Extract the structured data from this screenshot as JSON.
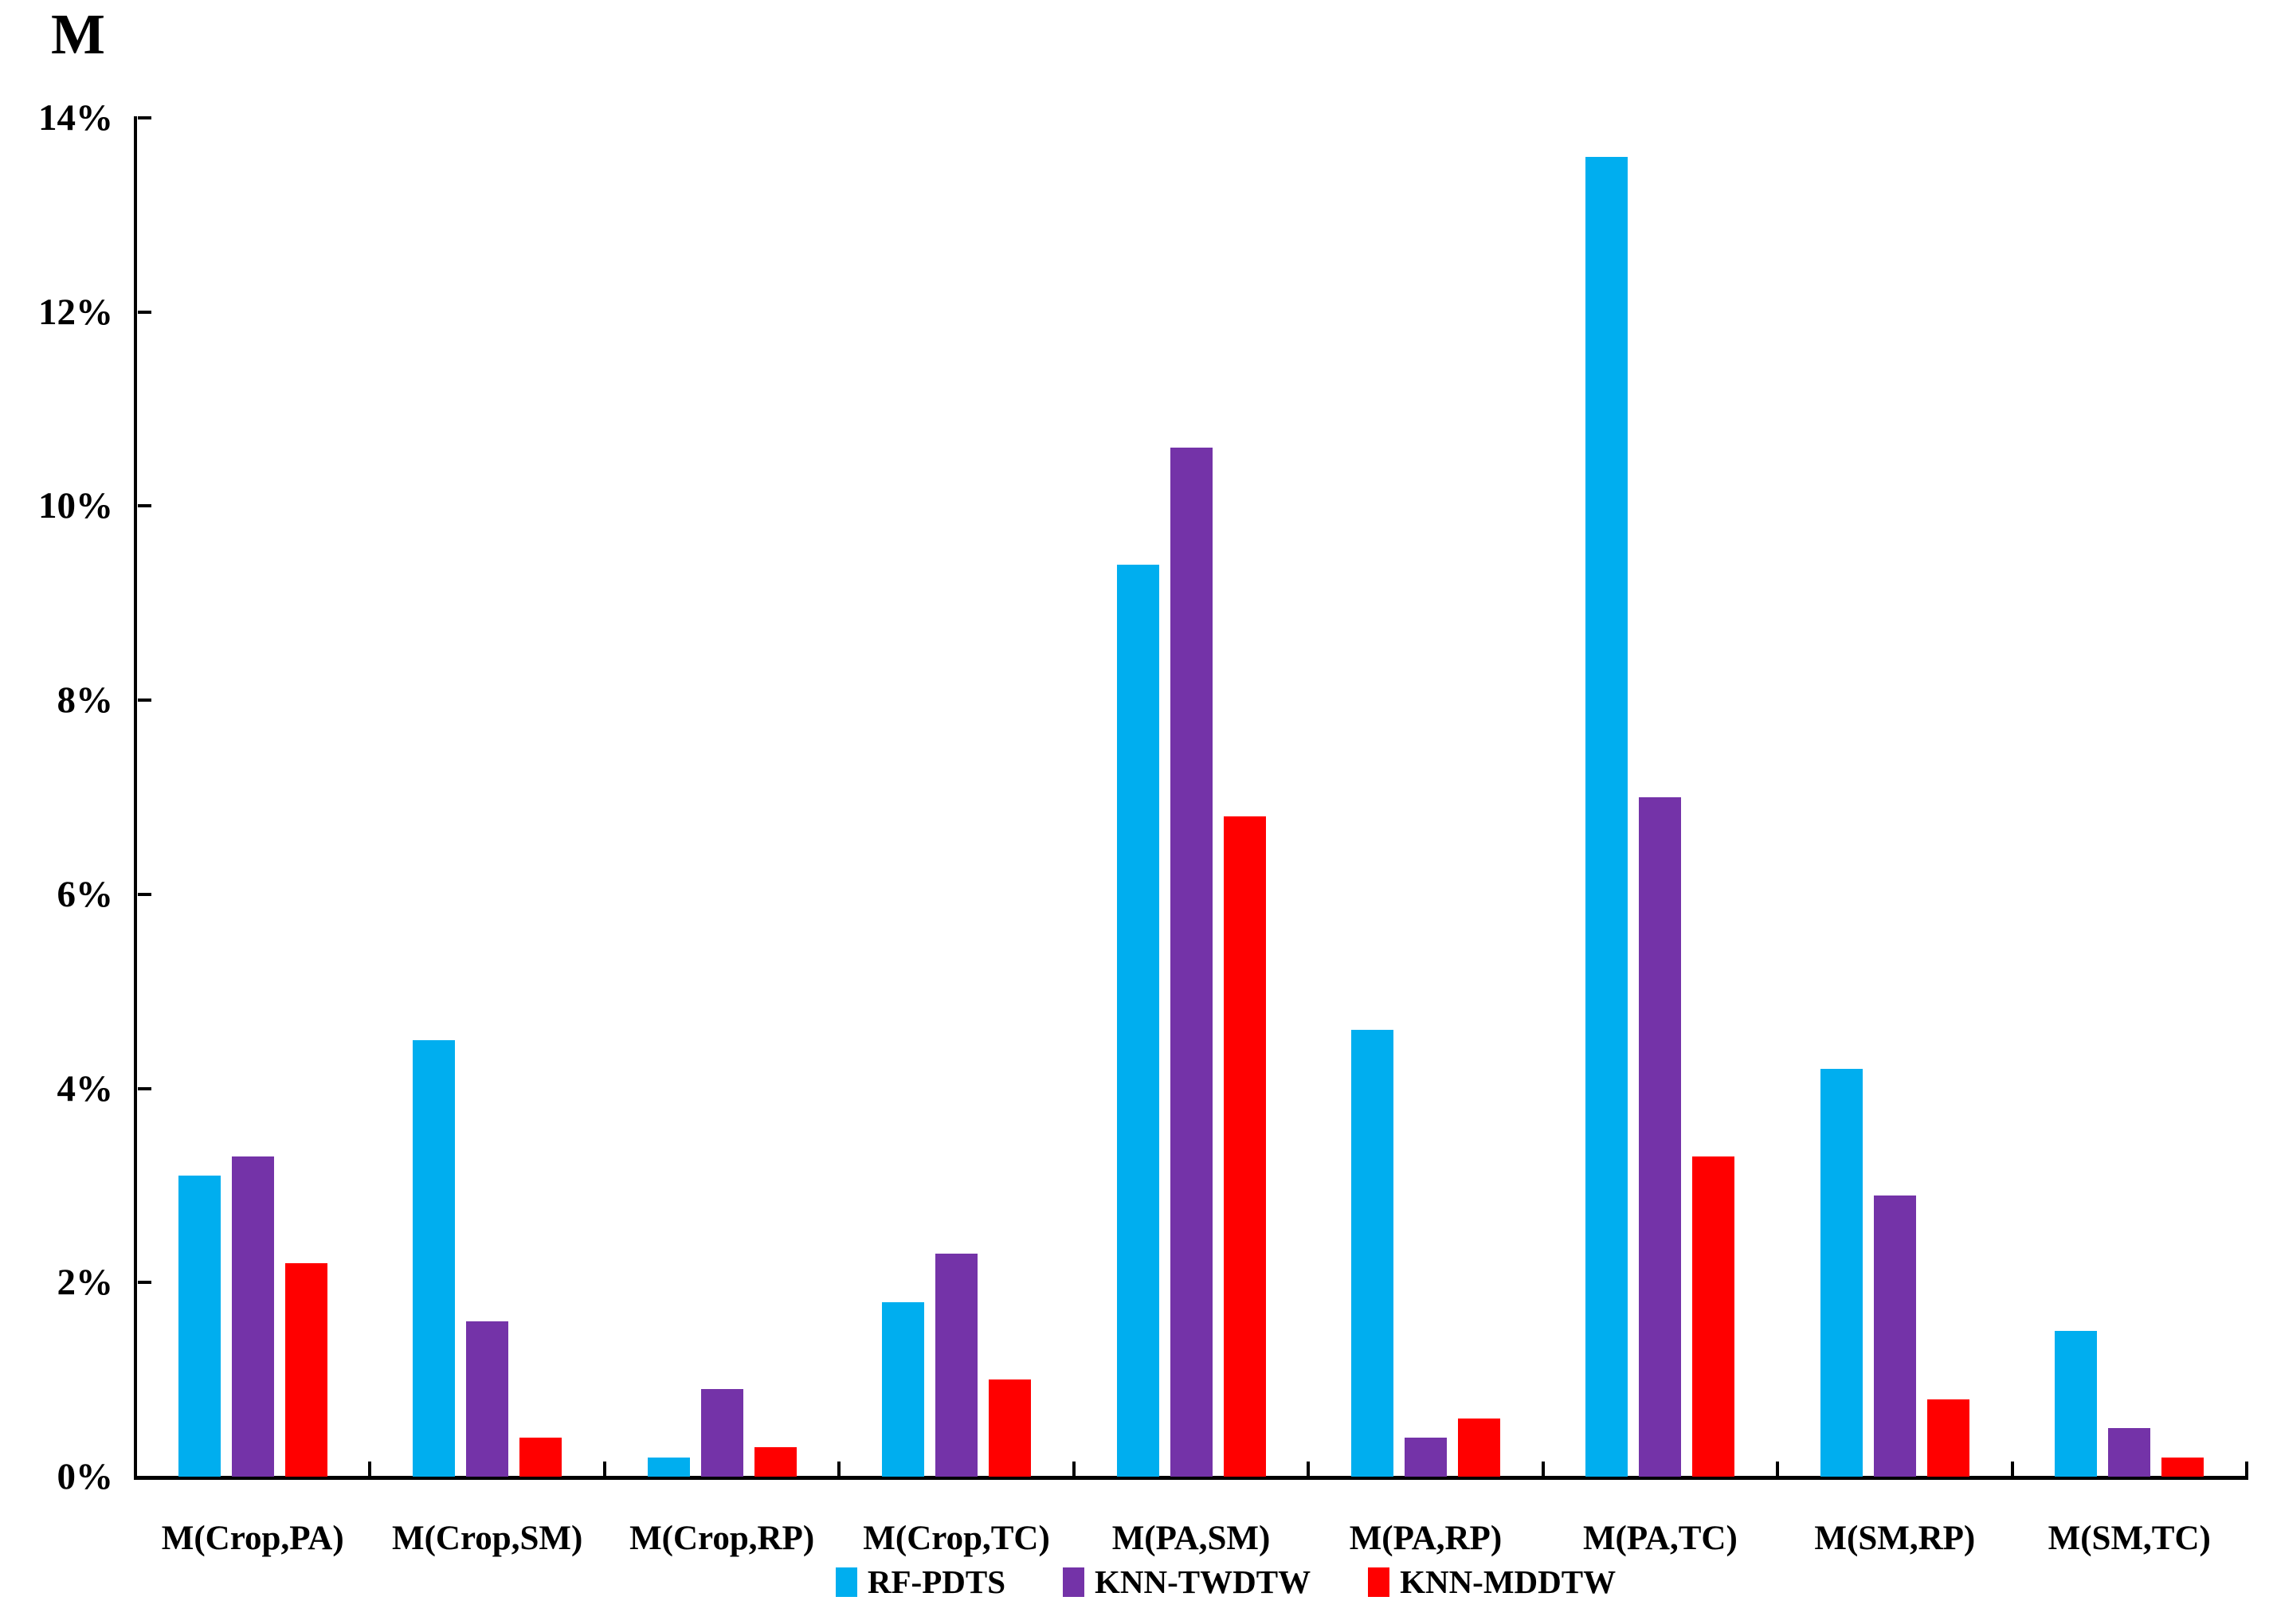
{
  "title": "M",
  "chart_data": {
    "type": "bar",
    "title": "M",
    "categories": [
      "M(Crop,PA)",
      "M(Crop,SM)",
      "M(Crop,RP)",
      "M(Crop,TC)",
      "M(PA,SM)",
      "M(PA,RP)",
      "M(PA,TC)",
      "M(SM,RP)",
      "M(SM,TC)"
    ],
    "series": [
      {
        "name": "RF-PDTS",
        "color": "#00AEEF",
        "values": [
          3.1,
          4.5,
          0.2,
          1.8,
          9.4,
          4.6,
          13.6,
          4.2,
          1.5
        ]
      },
      {
        "name": "KNN-TWDTW",
        "color": "#7433A8",
        "values": [
          3.3,
          1.6,
          0.9,
          2.3,
          10.6,
          0.4,
          7.0,
          2.9,
          0.5
        ]
      },
      {
        "name": "KNN-MDDTW",
        "color": "#FF0000",
        "values": [
          2.2,
          0.4,
          0.3,
          1.0,
          6.8,
          0.6,
          3.3,
          0.8,
          0.2
        ]
      }
    ],
    "xlabel": "",
    "ylabel": "M",
    "ylim": [
      0,
      14
    ],
    "y_tick_step": 2,
    "y_tick_labels": [
      "14%",
      "12%",
      "10%",
      "8%",
      "6%",
      "4%",
      "2%",
      "0%"
    ],
    "grid": false,
    "legend_position": "bottom",
    "axis_color": "#000000"
  }
}
